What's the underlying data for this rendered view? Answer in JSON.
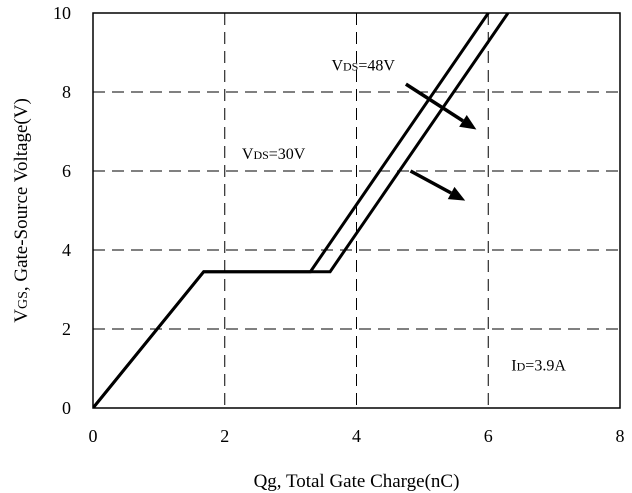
{
  "chart_data": {
    "type": "line",
    "xlabel": "Qg, Total Gate Charge(nC)",
    "ylabel": "VGS, Gate-Source Voltage(V)",
    "xlim": [
      0,
      8
    ],
    "ylim": [
      0,
      10
    ],
    "x_ticks": [
      0,
      2,
      4,
      6,
      8
    ],
    "y_ticks": [
      0,
      2,
      4,
      6,
      8,
      10
    ],
    "grid": true,
    "series": [
      {
        "name": "VDS=30V",
        "x": [
          0,
          1.68,
          3.3,
          6.0
        ],
        "y": [
          0,
          3.45,
          3.45,
          10
        ]
      },
      {
        "name": "VDS=48V",
        "x": [
          0,
          1.68,
          3.6,
          6.3
        ],
        "y": [
          0,
          3.45,
          3.45,
          10
        ]
      }
    ],
    "annotations": [
      {
        "text": "VDS=48V",
        "main": "V",
        "sub": "DS",
        "rest": "=48V",
        "tx": 3.62,
        "ty": 8.55,
        "from": [
          4.75,
          8.2
        ],
        "to": [
          5.82,
          7.05
        ]
      },
      {
        "text": "VDS=30V",
        "main": "V",
        "sub": "DS",
        "rest": "=30V",
        "tx": 2.26,
        "ty": 6.3,
        "from": [
          4.82,
          6.0
        ],
        "to": [
          5.65,
          5.25
        ]
      },
      {
        "text": "ID=3.9A",
        "main": "I",
        "sub": "D",
        "rest": "=3.9A",
        "tx": 6.35,
        "ty": 0.95
      }
    ]
  }
}
